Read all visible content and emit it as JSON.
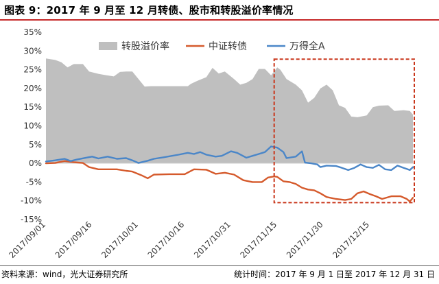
{
  "title": "图表 9：2017 年 9 月至 12 月转债、股市和转股溢价率情况",
  "source": "资料来源：wind，光大证券研究所",
  "period": "统计时间：2017 年 9 月 1 日至 2017 年 12 月 31 日",
  "colors": {
    "title_rule": "#c62828",
    "area": "#bfbfbf",
    "convertible": "#d55a2c",
    "wande_a": "#4a86c8",
    "highlight_box": "#c9361b"
  },
  "chart_data": {
    "type": "line",
    "title": "",
    "xlabel": "",
    "ylabel": "",
    "ylim": [
      -15,
      35
    ],
    "yticks": [
      "35%",
      "30%",
      "25%",
      "20%",
      "15%",
      "10%",
      "5%",
      "0%",
      "-5%",
      "-10%",
      "-15%"
    ],
    "xticks": [
      "2017/09/01",
      "2017/09/16",
      "2017/10/01",
      "2017/10/16",
      "2017/10/31",
      "2017/11/15",
      "2017/11/30",
      "2017/12/15"
    ],
    "x_range": [
      "2017/09/01",
      "2017/12/29"
    ],
    "grid": false,
    "legend_position": "top",
    "series": [
      {
        "name": "转股溢价率",
        "kind": "area",
        "points": [
          [
            "2017/09/01",
            28.0
          ],
          [
            "2017/09/04",
            27.6
          ],
          [
            "2017/09/06",
            27.0
          ],
          [
            "2017/09/08",
            25.6
          ],
          [
            "2017/09/10",
            26.5
          ],
          [
            "2017/09/13",
            26.5
          ],
          [
            "2017/09/15",
            24.5
          ],
          [
            "2017/09/18",
            23.9
          ],
          [
            "2017/09/20",
            23.6
          ],
          [
            "2017/09/23",
            23.2
          ],
          [
            "2017/09/25",
            24.4
          ],
          [
            "2017/09/27",
            24.5
          ],
          [
            "2017/09/29",
            24.5
          ],
          [
            "2017/10/01",
            22.5
          ],
          [
            "2017/10/03",
            20.5
          ],
          [
            "2017/10/05",
            20.6
          ],
          [
            "2017/10/09",
            20.6
          ],
          [
            "2017/10/13",
            20.6
          ],
          [
            "2017/10/17",
            20.6
          ],
          [
            "2017/10/18",
            21.2
          ],
          [
            "2017/10/20",
            22.0
          ],
          [
            "2017/10/23",
            23.0
          ],
          [
            "2017/10/25",
            25.5
          ],
          [
            "2017/10/27",
            24.0
          ],
          [
            "2017/10/29",
            24.5
          ],
          [
            "2017/11/01",
            22.5
          ],
          [
            "2017/11/03",
            21.0
          ],
          [
            "2017/11/05",
            21.5
          ],
          [
            "2017/11/07",
            22.5
          ],
          [
            "2017/11/09",
            25.2
          ],
          [
            "2017/11/11",
            25.2
          ],
          [
            "2017/11/13",
            23.5
          ],
          [
            "2017/11/15",
            25.6
          ],
          [
            "2017/11/16",
            25.0
          ],
          [
            "2017/11/18",
            22.5
          ],
          [
            "2017/11/21",
            21.0
          ],
          [
            "2017/11/23",
            19.5
          ],
          [
            "2017/11/25",
            16.2
          ],
          [
            "2017/11/27",
            17.5
          ],
          [
            "2017/11/29",
            20.0
          ],
          [
            "2017/12/01",
            21.0
          ],
          [
            "2017/12/03",
            19.5
          ],
          [
            "2017/12/05",
            15.5
          ],
          [
            "2017/12/07",
            14.8
          ],
          [
            "2017/12/09",
            12.5
          ],
          [
            "2017/12/11",
            12.3
          ],
          [
            "2017/12/14",
            12.8
          ],
          [
            "2017/12/16",
            15.0
          ],
          [
            "2017/12/18",
            15.4
          ],
          [
            "2017/12/21",
            15.5
          ],
          [
            "2017/12/23",
            14.0
          ],
          [
            "2017/12/26",
            14.2
          ],
          [
            "2017/12/28",
            14.0
          ],
          [
            "2017/12/29",
            13.0
          ]
        ]
      },
      {
        "name": "中证转债",
        "kind": "line",
        "points": [
          [
            "2017/09/01",
            0.0
          ],
          [
            "2017/09/04",
            0.1
          ],
          [
            "2017/09/07",
            0.6
          ],
          [
            "2017/09/10",
            0.3
          ],
          [
            "2017/09/13",
            0.1
          ],
          [
            "2017/09/15",
            -1.0
          ],
          [
            "2017/09/18",
            -1.6
          ],
          [
            "2017/09/21",
            -1.6
          ],
          [
            "2017/09/24",
            -1.6
          ],
          [
            "2017/09/27",
            -2.0
          ],
          [
            "2017/09/29",
            -2.2
          ],
          [
            "2017/10/02",
            -3.2
          ],
          [
            "2017/10/04",
            -4.0
          ],
          [
            "2017/10/06",
            -3.0
          ],
          [
            "2017/10/11",
            -2.9
          ],
          [
            "2017/10/16",
            -2.9
          ],
          [
            "2017/10/19",
            -1.6
          ],
          [
            "2017/10/23",
            -1.7
          ],
          [
            "2017/10/26",
            -2.8
          ],
          [
            "2017/10/29",
            -2.5
          ],
          [
            "2017/11/01",
            -3.0
          ],
          [
            "2017/11/04",
            -4.5
          ],
          [
            "2017/11/07",
            -5.0
          ],
          [
            "2017/11/10",
            -5.0
          ],
          [
            "2017/11/12",
            -3.8
          ],
          [
            "2017/11/14",
            -3.5
          ],
          [
            "2017/11/15",
            -3.6
          ],
          [
            "2017/11/17",
            -4.8
          ],
          [
            "2017/11/19",
            -5.0
          ],
          [
            "2017/11/21",
            -5.5
          ],
          [
            "2017/11/23",
            -6.5
          ],
          [
            "2017/11/25",
            -7.0
          ],
          [
            "2017/11/27",
            -7.2
          ],
          [
            "2017/11/29",
            -8.0
          ],
          [
            "2017/12/01",
            -9.0
          ],
          [
            "2017/12/04",
            -9.5
          ],
          [
            "2017/12/07",
            -9.8
          ],
          [
            "2017/12/09",
            -9.5
          ],
          [
            "2017/12/11",
            -8.0
          ],
          [
            "2017/12/13",
            -7.5
          ],
          [
            "2017/12/15",
            -8.2
          ],
          [
            "2017/12/17",
            -8.8
          ],
          [
            "2017/12/19",
            -9.5
          ],
          [
            "2017/12/22",
            -8.8
          ],
          [
            "2017/12/25",
            -8.8
          ],
          [
            "2017/12/27",
            -9.5
          ],
          [
            "2017/12/28",
            -10.2
          ],
          [
            "2017/12/29",
            -9.2
          ]
        ]
      },
      {
        "name": "万得全A",
        "kind": "line",
        "points": [
          [
            "2017/09/01",
            0.5
          ],
          [
            "2017/09/04",
            0.8
          ],
          [
            "2017/09/07",
            1.2
          ],
          [
            "2017/09/09",
            0.6
          ],
          [
            "2017/09/11",
            1.0
          ],
          [
            "2017/09/14",
            1.5
          ],
          [
            "2017/09/16",
            1.8
          ],
          [
            "2017/09/18",
            1.3
          ],
          [
            "2017/09/21",
            1.8
          ],
          [
            "2017/09/24",
            1.2
          ],
          [
            "2017/09/27",
            1.4
          ],
          [
            "2017/09/29",
            0.8
          ],
          [
            "2017/10/01",
            0.1
          ],
          [
            "2017/10/04",
            0.7
          ],
          [
            "2017/10/06",
            1.2
          ],
          [
            "2017/10/09",
            1.6
          ],
          [
            "2017/10/14",
            2.3
          ],
          [
            "2017/10/17",
            2.8
          ],
          [
            "2017/10/19",
            2.5
          ],
          [
            "2017/10/21",
            3.0
          ],
          [
            "2017/10/23",
            2.3
          ],
          [
            "2017/10/26",
            1.8
          ],
          [
            "2017/10/28",
            2.0
          ],
          [
            "2017/10/31",
            3.2
          ],
          [
            "2017/11/02",
            2.8
          ],
          [
            "2017/11/05",
            1.5
          ],
          [
            "2017/11/07",
            2.0
          ],
          [
            "2017/11/09",
            2.5
          ],
          [
            "2017/11/11",
            3.0
          ],
          [
            "2017/11/13",
            4.5
          ],
          [
            "2017/11/15",
            4.2
          ],
          [
            "2017/11/17",
            3.0
          ],
          [
            "2017/11/18",
            1.4
          ],
          [
            "2017/11/21",
            1.8
          ],
          [
            "2017/11/23",
            3.2
          ],
          [
            "2017/11/24",
            0.2
          ],
          [
            "2017/11/26",
            0.0
          ],
          [
            "2017/11/28",
            -0.3
          ],
          [
            "2017/11/29",
            -1.0
          ],
          [
            "2017/12/01",
            -0.6
          ],
          [
            "2017/12/04",
            -0.7
          ],
          [
            "2017/12/06",
            -1.2
          ],
          [
            "2017/12/08",
            -1.8
          ],
          [
            "2017/12/10",
            -1.2
          ],
          [
            "2017/12/12",
            -0.3
          ],
          [
            "2017/12/14",
            -1.0
          ],
          [
            "2017/12/16",
            -1.2
          ],
          [
            "2017/12/18",
            -0.4
          ],
          [
            "2017/12/20",
            -1.6
          ],
          [
            "2017/12/22",
            -1.8
          ],
          [
            "2017/12/24",
            -0.6
          ],
          [
            "2017/12/26",
            -1.2
          ],
          [
            "2017/12/27",
            -1.5
          ],
          [
            "2017/12/28",
            -1.8
          ],
          [
            "2017/12/29",
            -1.0
          ]
        ]
      }
    ],
    "highlight_box": {
      "x_from": "2017/11/14",
      "x_to": "2017/12/29",
      "y_from": -10.5,
      "y_to": 27.8,
      "style": "dashed"
    }
  }
}
